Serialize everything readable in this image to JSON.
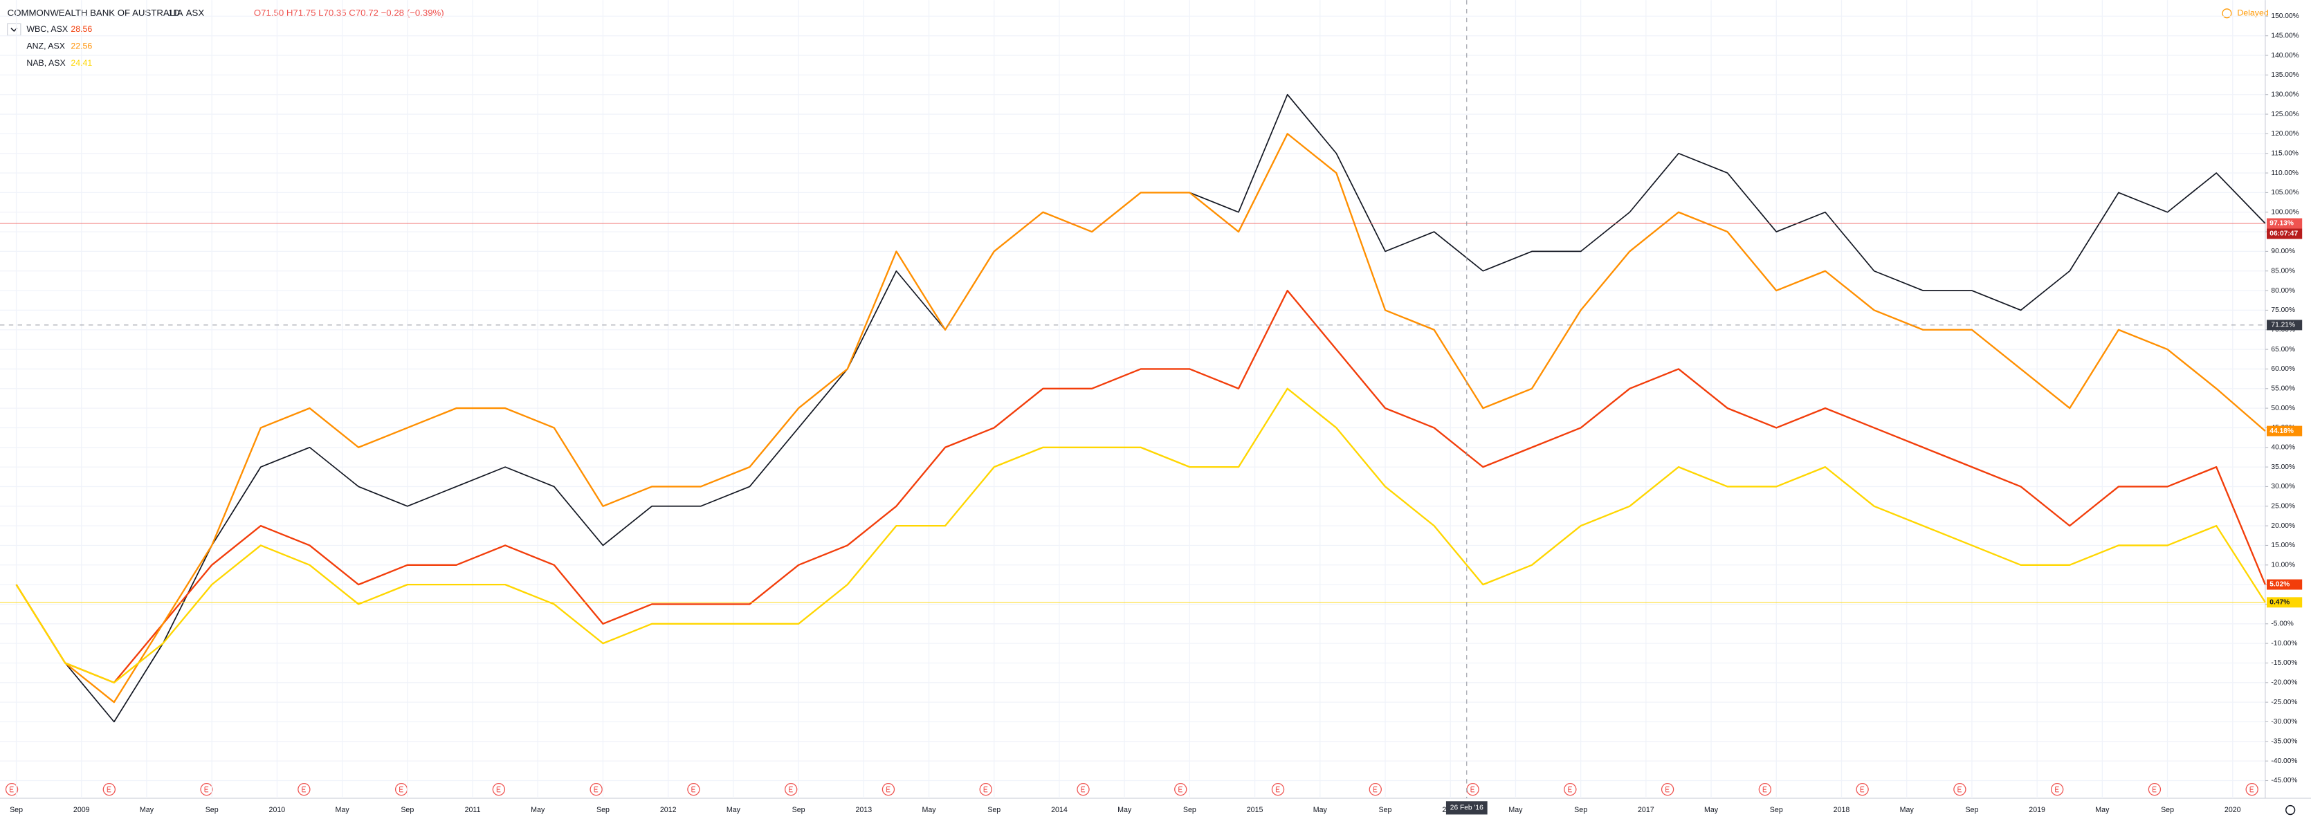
{
  "chart_data": {
    "type": "line",
    "title": "COMMONWEALTH BANK OF AUSTRALIA",
    "interval": "1D",
    "exchange": "ASX",
    "ohlc": "O71.50 H71.75 L70.35 C70.72 −0.28 (−0.39%)",
    "status": "Delayed",
    "countdown": "06:07:47",
    "x": [
      "2008-09",
      "2008-12",
      "2009-03",
      "2009-06",
      "2009-09",
      "2009-12",
      "2010-03",
      "2010-06",
      "2010-09",
      "2010-12",
      "2011-03",
      "2011-06",
      "2011-09",
      "2011-12",
      "2012-03",
      "2012-06",
      "2012-09",
      "2012-12",
      "2013-03",
      "2013-06",
      "2013-09",
      "2013-12",
      "2014-03",
      "2014-06",
      "2014-09",
      "2014-12",
      "2015-03",
      "2015-06",
      "2015-09",
      "2015-12",
      "2016-03",
      "2016-06",
      "2016-09",
      "2016-12",
      "2017-03",
      "2017-06",
      "2017-09",
      "2017-12",
      "2018-03",
      "2018-06",
      "2018-09",
      "2018-12",
      "2019-03",
      "2019-06",
      "2019-09",
      "2019-12",
      "2020-03"
    ],
    "series": [
      {
        "color": "#131722",
        "label_color": "#ef5350",
        "end_label": "97.13%",
        "values": [
          5,
          -15,
          -30,
          -10,
          15,
          35,
          40,
          30,
          25,
          30,
          35,
          30,
          15,
          25,
          25,
          30,
          45,
          60,
          85,
          70,
          90,
          100,
          95,
          105,
          105,
          100,
          130,
          115,
          90,
          95,
          85,
          90,
          90,
          100,
          115,
          110,
          95,
          100,
          85,
          80,
          80,
          75,
          85,
          105,
          100,
          110,
          97.13
        ]
      },
      {
        "name": "WBC, ASX",
        "legend_value": 28.56,
        "color": "#f23d0a",
        "label_color": "#f23d0a",
        "end_label": "5.02%",
        "values": [
          5,
          -15,
          -20,
          -5,
          10,
          20,
          15,
          5,
          10,
          10,
          15,
          10,
          -5,
          0,
          0,
          0,
          10,
          15,
          25,
          40,
          45,
          55,
          55,
          60,
          60,
          55,
          80,
          65,
          50,
          45,
          35,
          40,
          45,
          55,
          60,
          50,
          45,
          50,
          45,
          40,
          35,
          30,
          20,
          30,
          30,
          35,
          5.02
        ]
      },
      {
        "name": "ANZ, ASX",
        "legend_value": 22.56,
        "color": "#ff8f00",
        "label_color": "#ff8f00",
        "end_label": "44.18%",
        "values": [
          5,
          -15,
          -25,
          -5,
          15,
          45,
          50,
          40,
          45,
          50,
          50,
          45,
          25,
          30,
          30,
          35,
          50,
          60,
          90,
          70,
          90,
          100,
          95,
          105,
          105,
          95,
          120,
          110,
          75,
          70,
          50,
          55,
          75,
          90,
          100,
          95,
          80,
          85,
          75,
          70,
          70,
          60,
          50,
          70,
          65,
          55,
          44.18
        ]
      },
      {
        "name": "NAB, ASX",
        "legend_value": 24.41,
        "color": "#ffd600",
        "label_color": "#ffd600",
        "end_label": "0.47%",
        "values": [
          5,
          -15,
          -20,
          -10,
          5,
          15,
          10,
          0,
          5,
          5,
          5,
          0,
          -10,
          -5,
          -5,
          -5,
          -5,
          5,
          20,
          20,
          35,
          40,
          40,
          40,
          35,
          35,
          55,
          45,
          30,
          20,
          5,
          10,
          20,
          25,
          35,
          30,
          30,
          35,
          25,
          20,
          15,
          10,
          10,
          15,
          15,
          20,
          0.47
        ]
      }
    ],
    "xlim": [
      "2008-08",
      "2020-03"
    ],
    "xticks": [
      {
        "value": "2008-09",
        "label": "Sep"
      },
      {
        "value": "2009-01",
        "label": "2009"
      },
      {
        "value": "2009-05",
        "label": "May"
      },
      {
        "value": "2009-09",
        "label": "Sep"
      },
      {
        "value": "2010-01",
        "label": "2010"
      },
      {
        "value": "2010-05",
        "label": "May"
      },
      {
        "value": "2010-09",
        "label": "Sep"
      },
      {
        "value": "2011-01",
        "label": "2011"
      },
      {
        "value": "2011-05",
        "label": "May"
      },
      {
        "value": "2011-09",
        "label": "Sep"
      },
      {
        "value": "2012-01",
        "label": "2012"
      },
      {
        "value": "2012-05",
        "label": "May"
      },
      {
        "value": "2012-09",
        "label": "Sep"
      },
      {
        "value": "2013-01",
        "label": "2013"
      },
      {
        "value": "2013-05",
        "label": "May"
      },
      {
        "value": "2013-09",
        "label": "Sep"
      },
      {
        "value": "2014-01",
        "label": "2014"
      },
      {
        "value": "2014-05",
        "label": "May"
      },
      {
        "value": "2014-09",
        "label": "Sep"
      },
      {
        "value": "2015-01",
        "label": "2015"
      },
      {
        "value": "2015-05",
        "label": "May"
      },
      {
        "value": "2015-09",
        "label": "Sep"
      },
      {
        "value": "2016-01",
        "label": "2016"
      },
      {
        "value": "2016-05",
        "label": "May"
      },
      {
        "value": "2016-09",
        "label": "Sep"
      },
      {
        "value": "2017-01",
        "label": "2017"
      },
      {
        "value": "2017-05",
        "label": "May"
      },
      {
        "value": "2017-09",
        "label": "Sep"
      },
      {
        "value": "2018-01",
        "label": "2018"
      },
      {
        "value": "2018-05",
        "label": "May"
      },
      {
        "value": "2018-09",
        "label": "Sep"
      },
      {
        "value": "2019-01",
        "label": "2019"
      },
      {
        "value": "2019-05",
        "label": "May"
      },
      {
        "value": "2019-09",
        "label": "Sep"
      },
      {
        "value": "2020-01",
        "label": "2020"
      }
    ],
    "ylim": [
      -49.5,
      154.1
    ],
    "yticks": [
      {
        "value": 150,
        "label": "150.00%"
      },
      {
        "value": 145,
        "label": "145.00%"
      },
      {
        "value": 140,
        "label": "140.00%"
      },
      {
        "value": 135,
        "label": "135.00%"
      },
      {
        "value": 130,
        "label": "130.00%"
      },
      {
        "value": 125,
        "label": "125.00%"
      },
      {
        "value": 120,
        "label": "120.00%"
      },
      {
        "value": 115,
        "label": "115.00%"
      },
      {
        "value": 110,
        "label": "110.00%"
      },
      {
        "value": 105,
        "label": "105.00%"
      },
      {
        "value": 100,
        "label": "100.00%"
      },
      {
        "value": 95,
        "label": "95.00%"
      },
      {
        "value": 90,
        "label": "90.00%"
      },
      {
        "value": 85,
        "label": "85.00%"
      },
      {
        "value": 80,
        "label": "80.00%"
      },
      {
        "value": 75,
        "label": "75.00%"
      },
      {
        "value": 70,
        "label": "70.00%"
      },
      {
        "value": 65,
        "label": "65.00%"
      },
      {
        "value": 60,
        "label": "60.00%"
      },
      {
        "value": 55,
        "label": "55.00%"
      },
      {
        "value": 50,
        "label": "50.00%"
      },
      {
        "value": 45,
        "label": "45.00%"
      },
      {
        "value": 40,
        "label": "40.00%"
      },
      {
        "value": 35,
        "label": "35.00%"
      },
      {
        "value": 30,
        "label": "30.00%"
      },
      {
        "value": 25,
        "label": "25.00%"
      },
      {
        "value": 20,
        "label": "20.00%"
      },
      {
        "value": 15,
        "label": "15.00%"
      },
      {
        "value": 10,
        "label": "10.00%"
      },
      {
        "value": 5,
        "label": "5.00%"
      },
      {
        "value": 0,
        "label": "0.00%"
      },
      {
        "value": -5,
        "label": "-5.00%"
      },
      {
        "value": -10,
        "label": "-10.00%"
      },
      {
        "value": -15,
        "label": "-15.00%"
      },
      {
        "value": -20,
        "label": "-20.00%"
      },
      {
        "value": -25,
        "label": "-25.00%"
      },
      {
        "value": -30,
        "label": "-30.00%"
      },
      {
        "value": -35,
        "label": "-35.00%"
      },
      {
        "value": -40,
        "label": "-40.00%"
      },
      {
        "value": -45,
        "label": "-45.00%"
      }
    ],
    "grid": true,
    "crosshair": {
      "x": "2016-02",
      "x_label": "26 Feb '16",
      "y": 71.21,
      "y_label": "71.21%"
    }
  }
}
